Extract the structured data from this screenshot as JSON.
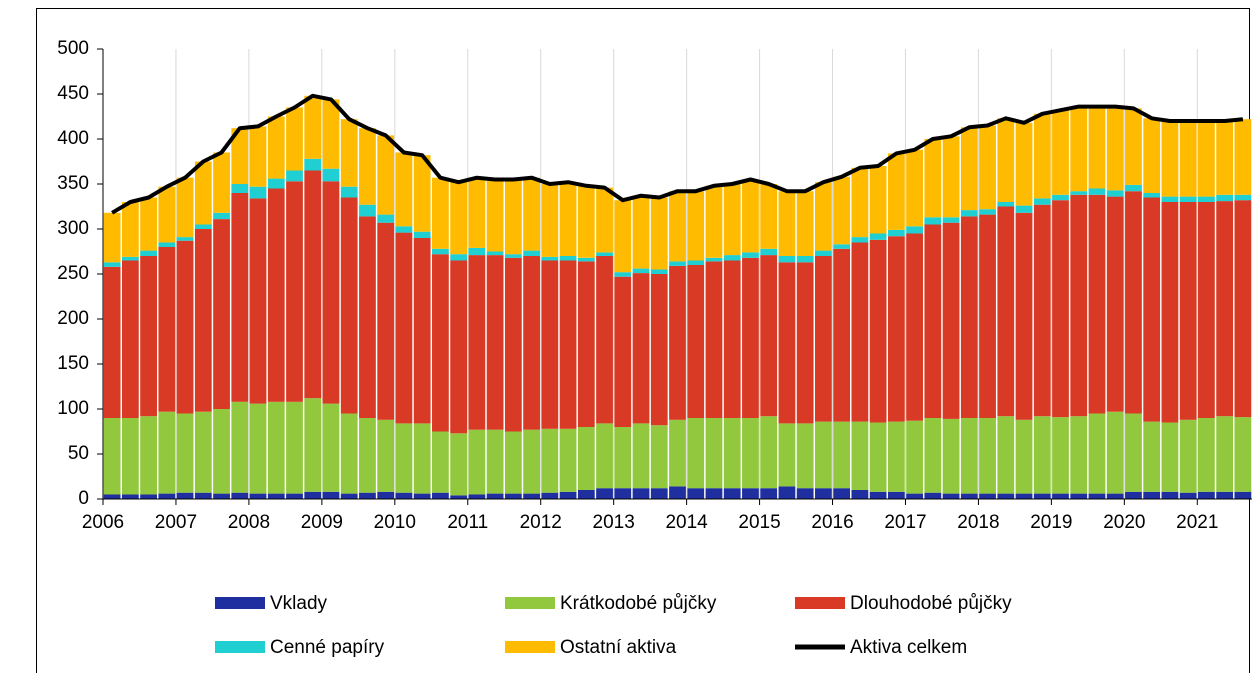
{
  "chart_data": {
    "type": "bar",
    "stacked": true,
    "categories": [
      "2006",
      null,
      null,
      null,
      "2007",
      null,
      null,
      null,
      "2008",
      null,
      null,
      null,
      "2009",
      null,
      null,
      null,
      "2010",
      null,
      null,
      null,
      "2011",
      null,
      null,
      null,
      "2012",
      null,
      null,
      null,
      "2013",
      null,
      null,
      null,
      "2014",
      null,
      null,
      null,
      "2015",
      null,
      null,
      null,
      "2016",
      null,
      null,
      null,
      "2017",
      null,
      null,
      null,
      "2018",
      null,
      null,
      null,
      "2019",
      null,
      null,
      null,
      "2020",
      null,
      null,
      null,
      "2021",
      null,
      null
    ],
    "ylim": [
      0,
      500
    ],
    "yticks": [
      0,
      50,
      100,
      150,
      200,
      250,
      300,
      350,
      400,
      450,
      500
    ],
    "grid": "x",
    "series": [
      {
        "name": "Vklady",
        "color": "#1f2fa0",
        "values": [
          5,
          5,
          5,
          6,
          7,
          7,
          6,
          7,
          6,
          6,
          6,
          8,
          8,
          6,
          7,
          8,
          7,
          6,
          7,
          4,
          5,
          6,
          6,
          6,
          7,
          8,
          10,
          12,
          12,
          12,
          12,
          14,
          12,
          12,
          12,
          12,
          12,
          14,
          12,
          12,
          12,
          10,
          8,
          8,
          6,
          7,
          6,
          6,
          6,
          6,
          6,
          6,
          6,
          6,
          6,
          6,
          8,
          8,
          8,
          7,
          8,
          8,
          8
        ]
      },
      {
        "name": "Krátkodobé půjčky",
        "color": "#92c83e",
        "values": [
          85,
          85,
          87,
          91,
          88,
          90,
          94,
          101,
          100,
          102,
          102,
          104,
          98,
          89,
          83,
          80,
          77,
          78,
          68,
          69,
          72,
          71,
          69,
          71,
          71,
          70,
          70,
          72,
          68,
          72,
          70,
          74,
          78,
          78,
          78,
          78,
          80,
          70,
          72,
          74,
          74,
          76,
          77,
          78,
          81,
          83,
          83,
          84,
          84,
          86,
          82,
          86,
          85,
          86,
          89,
          91,
          87,
          78,
          77,
          81,
          82,
          84,
          83
        ]
      },
      {
        "name": "Dlouhodobé půjčky",
        "color": "#d93a26",
        "values": [
          168,
          175,
          178,
          183,
          192,
          203,
          211,
          232,
          228,
          237,
          245,
          253,
          247,
          240,
          224,
          219,
          212,
          206,
          197,
          192,
          194,
          194,
          193,
          193,
          187,
          187,
          184,
          186,
          167,
          167,
          168,
          171,
          170,
          174,
          175,
          178,
          179,
          179,
          179,
          184,
          192,
          199,
          203,
          206,
          208,
          215,
          218,
          224,
          226,
          233,
          230,
          235,
          241,
          246,
          243,
          239,
          247,
          249,
          245,
          242,
          240,
          239,
          241
        ]
      },
      {
        "name": "Cenné papíry",
        "color": "#1fcfd1",
        "values": [
          5,
          4,
          6,
          5,
          4,
          5,
          7,
          10,
          13,
          11,
          12,
          13,
          14,
          12,
          13,
          9,
          7,
          7,
          6,
          7,
          8,
          4,
          4,
          6,
          4,
          5,
          4,
          4,
          5,
          5,
          5,
          5,
          5,
          4,
          6,
          6,
          7,
          7,
          7,
          6,
          5,
          6,
          7,
          7,
          8,
          8,
          6,
          7,
          6,
          5,
          8,
          7,
          6,
          4,
          7,
          7,
          7,
          5,
          6,
          6,
          6,
          7,
          6
        ]
      },
      {
        "name": "Ostatní aktiva",
        "color": "#ffbb00",
        "values": [
          55,
          61,
          59,
          62,
          66,
          70,
          67,
          62,
          67,
          69,
          70,
          70,
          77,
          75,
          85,
          88,
          82,
          85,
          79,
          80,
          78,
          80,
          83,
          81,
          81,
          82,
          80,
          72,
          80,
          81,
          80,
          78,
          77,
          80,
          79,
          81,
          72,
          72,
          72,
          76,
          75,
          77,
          75,
          85,
          85,
          87,
          90,
          92,
          93,
          93,
          92,
          94,
          94,
          94,
          91,
          93,
          85,
          83,
          84,
          84,
          84,
          82,
          84
        ]
      },
      {
        "name": "Aktiva celkem",
        "color": "#000000",
        "type": "line",
        "values": [
          318,
          330,
          335,
          347,
          357,
          375,
          385,
          412,
          414,
          425,
          435,
          448,
          444,
          422,
          412,
          404,
          385,
          382,
          357,
          352,
          357,
          355,
          355,
          357,
          350,
          352,
          348,
          346,
          332,
          337,
          335,
          342,
          342,
          348,
          350,
          355,
          350,
          342,
          342,
          352,
          358,
          368,
          370,
          384,
          388,
          400,
          403,
          413,
          415,
          423,
          418,
          428,
          432,
          436,
          436,
          436,
          434,
          423,
          420,
          420,
          420,
          420,
          422
        ]
      }
    ]
  }
}
